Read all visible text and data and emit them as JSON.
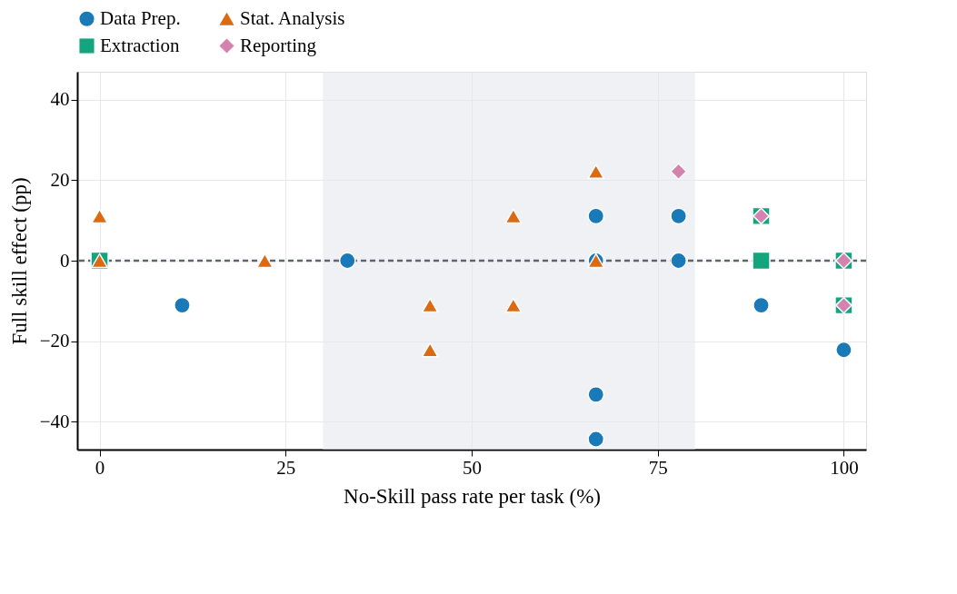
{
  "chart_data": {
    "type": "scatter",
    "xlabel": "No-Skill pass rate per task (%)",
    "ylabel": "Full skill effect (pp)",
    "series": [
      {
        "name": "Data Prep.",
        "color": "#1a7ab8",
        "marker": "circle",
        "x": [
          11.1,
          33.3,
          66.7,
          66.7,
          66.7,
          66.7,
          77.8,
          77.8,
          88.9,
          100
        ],
        "values": [
          -11.1,
          0,
          11.1,
          0,
          -33.3,
          -44.4,
          11.1,
          0,
          -11.1,
          -22.2
        ]
      },
      {
        "name": "Extraction",
        "color": "#14a57e",
        "marker": "square",
        "x": [
          0,
          88.9,
          88.9,
          100,
          100
        ],
        "values": [
          0,
          0,
          11.1,
          0,
          -11.1
        ]
      },
      {
        "name": "Stat. Analysis",
        "color": "#dc6a12",
        "marker": "triangle",
        "x": [
          0,
          0,
          22.2,
          44.4,
          44.4,
          55.6,
          55.6,
          66.7,
          66.7
        ],
        "values": [
          11.1,
          0,
          0,
          -11.1,
          -22.2,
          11.1,
          -11.1,
          22.2,
          0
        ]
      },
      {
        "name": "Reporting",
        "color": "#d283b0",
        "marker": "diamond",
        "x": [
          77.8,
          88.9,
          100,
          100
        ],
        "values": [
          22.2,
          11.1,
          0,
          -11.1
        ]
      }
    ],
    "xlim": [
      -3,
      103
    ],
    "ylim": [
      -47,
      47
    ],
    "xticks": [
      0,
      25,
      50,
      75,
      100
    ],
    "yticks": [
      -40,
      -20,
      0,
      20,
      40
    ],
    "ref_lines": [
      {
        "axis": "y",
        "value": 0,
        "label": null,
        "color": "#5f6670",
        "line_style": "dashed"
      }
    ],
    "bands": [
      {
        "axis": "x",
        "from": 30,
        "to": 80,
        "label": null,
        "color": "#e4e7ed"
      }
    ],
    "grid": true,
    "legend": "top"
  }
}
